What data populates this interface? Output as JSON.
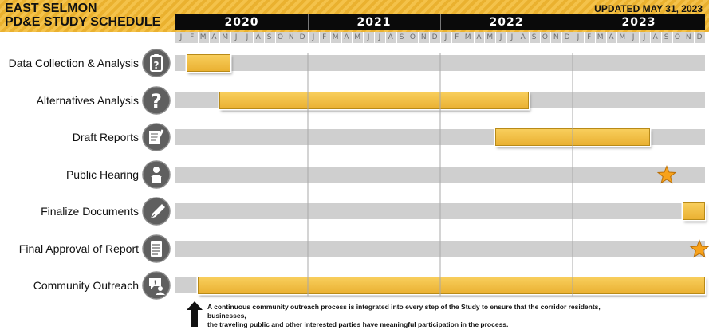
{
  "header": {
    "title_line1": "EAST SELMON",
    "title_line2": "PD&E STUDY SCHEDULE",
    "updated": "UPDATED MAY 31, 2023"
  },
  "colors": {
    "accent_yellow": "#f4c24a",
    "bar_fill": "#f2bf45",
    "track_gray": "#cfcfcf",
    "icon_gray": "#5f5f5f",
    "star_fill": "#f7a21b"
  },
  "chart_data": {
    "type": "gantt",
    "years": [
      "2020",
      "2021",
      "2022",
      "2023"
    ],
    "months": [
      "J",
      "F",
      "M",
      "A",
      "M",
      "J",
      "J",
      "A",
      "S",
      "O",
      "N",
      "D"
    ],
    "tasks": [
      {
        "label": "Data Collection & Analysis",
        "icon": "clipboard-question-icon",
        "start": "2020-02",
        "end": "2020-05",
        "milestone": false
      },
      {
        "label": "Alternatives Analysis",
        "icon": "question-mark-icon",
        "start": "2020-05",
        "end": "2022-08",
        "milestone": false
      },
      {
        "label": "Draft  Reports",
        "icon": "document-pen-icon",
        "start": "2022-06",
        "end": "2023-07",
        "milestone": false
      },
      {
        "label": "Public Hearing",
        "icon": "speaker-podium-icon",
        "start": "2023-09",
        "end": "2023-09",
        "milestone": true
      },
      {
        "label": "Finalize Documents",
        "icon": "fountain-pen-icon",
        "start": "2023-11",
        "end": "2023-12",
        "milestone": false
      },
      {
        "label": "Final  Approval of Report",
        "icon": "approved-document-icon",
        "start": "2023-12",
        "end": "2023-12",
        "milestone": true
      },
      {
        "label": "Community Outreach",
        "icon": "speech-bubble-person-icon",
        "start": "2020-03",
        "end": "2023-12",
        "milestone": false
      }
    ]
  },
  "footnote": {
    "line1": "A continuous community outreach process is integrated into every step of the Study to ensure that the corridor residents, businesses,",
    "line2": "the traveling public and other interested parties have meaningful participation in the process."
  }
}
